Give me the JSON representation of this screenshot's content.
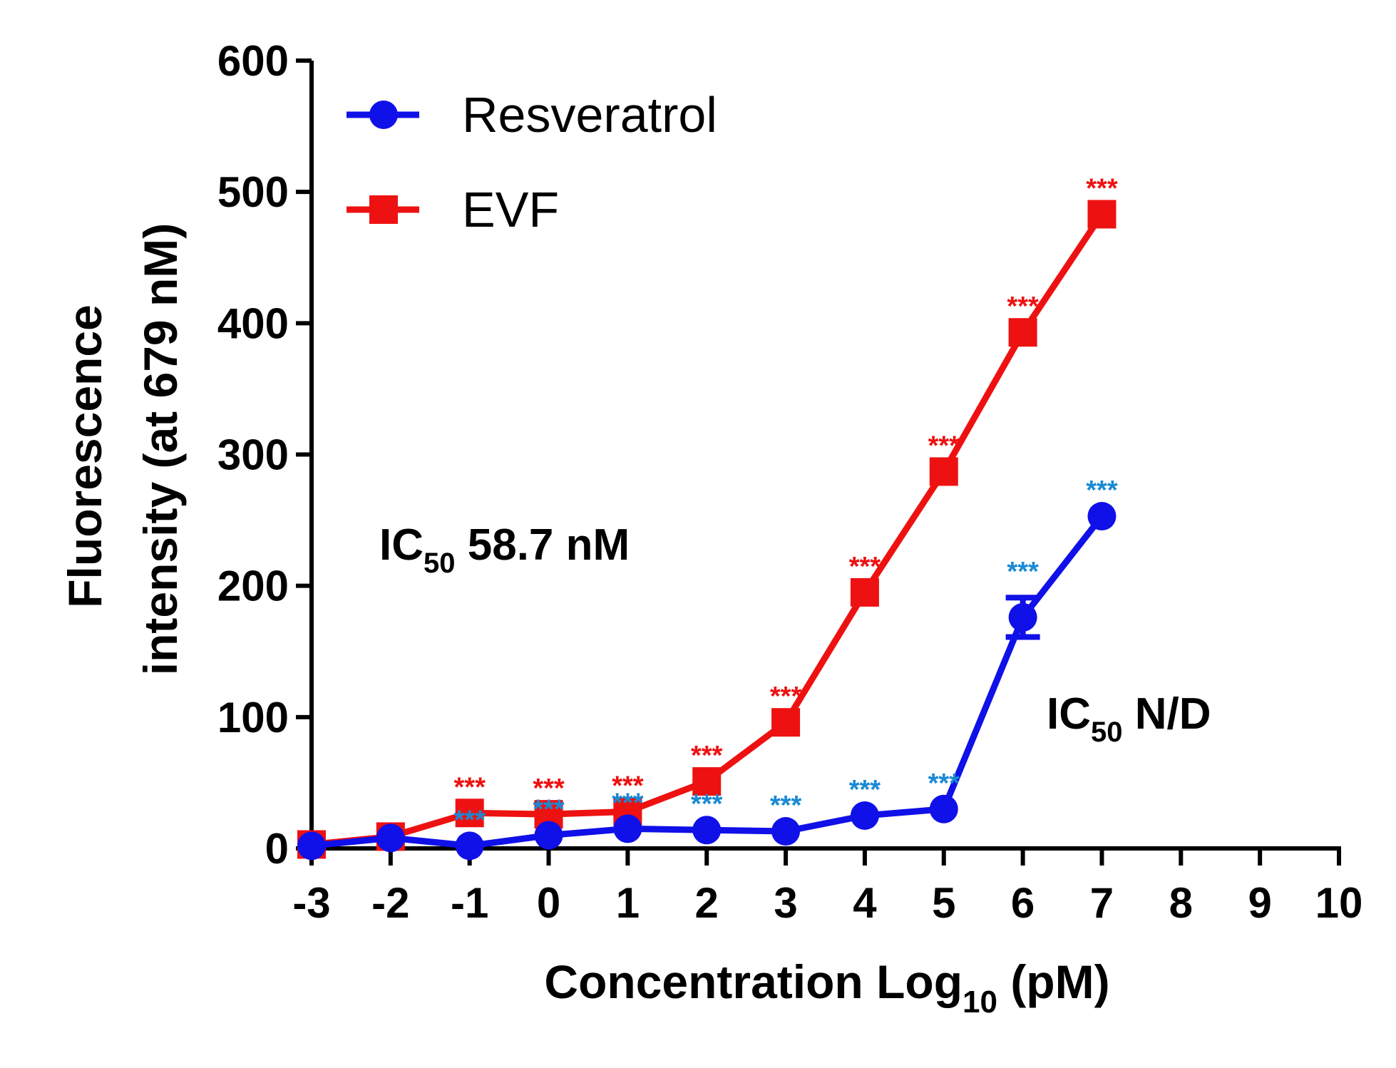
{
  "chart_data": {
    "type": "line",
    "title": "",
    "xlabel": "Concentration Log",
    "xlabel_sub": "10",
    "xlabel_suffix": " (pM)",
    "ylabel_line1": "Fluorescence",
    "ylabel_line2": "intensity  (at 679 nM)",
    "xlim": [
      -3,
      10
    ],
    "ylim": [
      0,
      600
    ],
    "xticks": [
      -3,
      -2,
      -1,
      0,
      1,
      2,
      3,
      4,
      5,
      6,
      7,
      8,
      9,
      10
    ],
    "yticks": [
      0,
      100,
      200,
      300,
      400,
      500,
      600
    ],
    "legend_position": "top-left",
    "series": [
      {
        "name": "Resveratrol",
        "color": "#1010e8",
        "marker": "circle",
        "x": [
          -3,
          -2,
          -1,
          0,
          1,
          2,
          3,
          4,
          5,
          6,
          7
        ],
        "y": [
          2,
          8,
          2,
          10,
          15,
          14,
          13,
          25,
          30,
          176,
          253
        ],
        "error": [
          0,
          0,
          0,
          0,
          0,
          0,
          0,
          0,
          0,
          15,
          0
        ],
        "significance": [
          "",
          "",
          "***",
          "***",
          "***",
          "***",
          "***",
          "***",
          "***",
          "***",
          "***"
        ],
        "significance_color": "#1a8ad4"
      },
      {
        "name": "EVF",
        "color": "#ee1111",
        "marker": "square",
        "x": [
          -3,
          -2,
          -1,
          0,
          1,
          2,
          3,
          4,
          5,
          6,
          7
        ],
        "y": [
          3,
          9,
          27,
          26,
          28,
          51,
          96,
          195,
          287,
          393,
          483
        ],
        "error": [
          0,
          0,
          0,
          0,
          0,
          0,
          0,
          0,
          0,
          0,
          0
        ],
        "significance": [
          "",
          "",
          "***",
          "***",
          "***",
          "***",
          "***",
          "***",
          "***",
          "***",
          "***"
        ],
        "significance_color": "#ee1111"
      }
    ],
    "annotations": [
      {
        "prefix": "IC",
        "sub": "50",
        "suffix": " 58.7 nM"
      },
      {
        "prefix": "IC",
        "sub": "50",
        "suffix": " N/D"
      }
    ]
  }
}
